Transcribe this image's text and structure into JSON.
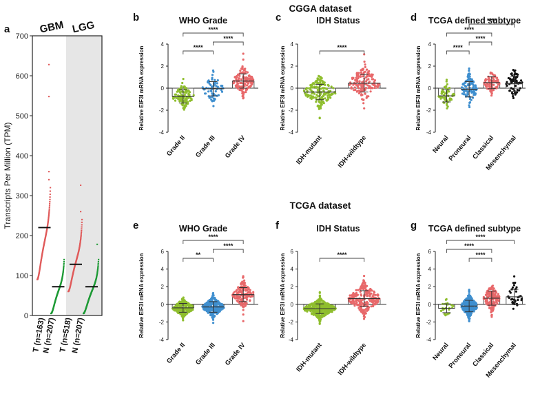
{
  "colors": {
    "green": "#8fbe2e",
    "blue": "#3f8fcf",
    "red": "#e8686a",
    "black": "#111111",
    "gtex_green": "#1d9a35",
    "tumor_red": "#e05a5a",
    "shade": "#e6e6e6"
  },
  "headers": {
    "cgga": "CGGA dataset",
    "tcga": "TCGA dataset"
  },
  "chart_data": [
    {
      "panel": "a",
      "type": "scatter",
      "ylabel": "Transcripts Per Million (TPM)",
      "ylim": [
        0,
        700
      ],
      "yticks": [
        "0",
        "100",
        "200",
        "300",
        "400",
        "500",
        "600",
        "700"
      ],
      "groups": [
        "GBM",
        "LGG"
      ],
      "categories": [
        "T (n=163)",
        "N (n=207)",
        "T (n=518)",
        "N (n=207)"
      ],
      "medians": [
        220,
        72,
        128,
        72
      ]
    },
    {
      "panel": "b",
      "type": "scatter",
      "dataset": "CGGA",
      "title": "WHO Grade",
      "ylabel": "Relative EIF3I mRNA expression",
      "ylim": [
        -4,
        4
      ],
      "yticks": [
        "-4",
        "-2",
        "0",
        "2",
        "4"
      ],
      "series": [
        {
          "name": "Grade II",
          "color": "green",
          "mean": -0.75,
          "sd": 0.6,
          "n": 110
        },
        {
          "name": "Grade III",
          "color": "blue",
          "mean": -0.05,
          "sd": 0.65,
          "n": 65
        },
        {
          "name": "Grade IV",
          "color": "red",
          "mean": 0.65,
          "sd": 0.65,
          "n": 140
        }
      ],
      "comparisons": [
        {
          "from": 0,
          "to": 1,
          "label": "****"
        },
        {
          "from": 1,
          "to": 2,
          "label": "****"
        },
        {
          "from": 0,
          "to": 2,
          "label": "****"
        }
      ]
    },
    {
      "panel": "c",
      "type": "scatter",
      "dataset": "CGGA",
      "title": "IDH Status",
      "ylabel": "Relative EIF3I mRNA expression",
      "ylim": [
        -4,
        4
      ],
      "yticks": [
        "-4",
        "-2",
        "0",
        "2",
        "4"
      ],
      "series": [
        {
          "name": "IDH-mutant",
          "color": "green",
          "mean": -0.35,
          "sd": 0.7,
          "n": 170
        },
        {
          "name": "IDH-wildtype",
          "color": "red",
          "mean": 0.45,
          "sd": 0.8,
          "n": 150
        }
      ],
      "comparisons": [
        {
          "from": 0,
          "to": 1,
          "label": "****"
        }
      ]
    },
    {
      "panel": "d",
      "type": "scatter",
      "dataset": "CGGA",
      "title": "TCGA defined subtype",
      "ylabel": "Relative EIF3I mRNA expression",
      "ylim": [
        -4,
        4
      ],
      "yticks": [
        "-4",
        "-2",
        "0",
        "2",
        "4"
      ],
      "series": [
        {
          "name": "Neural",
          "color": "green",
          "mean": -0.7,
          "sd": 0.55,
          "n": 60
        },
        {
          "name": "Proneural",
          "color": "blue",
          "mean": -0.1,
          "sd": 0.7,
          "n": 100
        },
        {
          "name": "Classical",
          "color": "red",
          "mean": 0.5,
          "sd": 0.55,
          "n": 75
        },
        {
          "name": "Mesenchymal",
          "color": "black",
          "mean": 0.4,
          "sd": 0.7,
          "n": 60
        }
      ],
      "comparisons": [
        {
          "from": 0,
          "to": 1,
          "label": "****"
        },
        {
          "from": 0,
          "to": 2,
          "label": "****"
        },
        {
          "from": 1,
          "to": 2,
          "label": "****"
        },
        {
          "from": 1,
          "to": 3,
          "label": "****"
        }
      ]
    },
    {
      "panel": "e",
      "type": "scatter",
      "dataset": "TCGA",
      "title": "WHO Grade",
      "ylabel": "Relative EIF3I mRNA expression",
      "ylim": [
        -4,
        6
      ],
      "yticks": [
        "-4",
        "-2",
        "0",
        "2",
        "4",
        "6"
      ],
      "series": [
        {
          "name": "Grade II",
          "color": "green",
          "mean": -0.4,
          "sd": 0.5,
          "n": 230
        },
        {
          "name": "Grade III",
          "color": "blue",
          "mean": -0.3,
          "sd": 0.6,
          "n": 240
        },
        {
          "name": "Grade IV",
          "color": "red",
          "mean": 1.1,
          "sd": 0.8,
          "n": 150
        }
      ],
      "comparisons": [
        {
          "from": 0,
          "to": 1,
          "label": "**"
        },
        {
          "from": 1,
          "to": 2,
          "label": "****"
        },
        {
          "from": 0,
          "to": 2,
          "label": "****"
        }
      ]
    },
    {
      "panel": "f",
      "type": "scatter",
      "dataset": "TCGA",
      "title": "IDH Status",
      "ylabel": "Relative EIF3I mRNA expression",
      "ylim": [
        -4,
        6
      ],
      "yticks": [
        "-4",
        "-2",
        "0",
        "2",
        "4",
        "6"
      ],
      "series": [
        {
          "name": "IDH-mutant",
          "color": "green",
          "mean": -0.5,
          "sd": 0.55,
          "n": 400
        },
        {
          "name": "IDH-wildtype",
          "color": "red",
          "mean": 0.65,
          "sd": 0.9,
          "n": 230
        }
      ],
      "comparisons": [
        {
          "from": 0,
          "to": 1,
          "label": "****"
        }
      ]
    },
    {
      "panel": "g",
      "type": "scatter",
      "dataset": "TCGA",
      "title": "TCGA defined subtype",
      "ylabel": "Relative EIF3I mRNA expression",
      "ylim": [
        -4,
        6
      ],
      "yticks": [
        "-4",
        "-2",
        "0",
        "2",
        "4",
        "6"
      ],
      "series": [
        {
          "name": "Neural",
          "color": "green",
          "mean": -0.45,
          "sd": 0.5,
          "n": 25
        },
        {
          "name": "Proneural",
          "color": "blue",
          "mean": -0.2,
          "sd": 0.65,
          "n": 330
        },
        {
          "name": "Classical",
          "color": "red",
          "mean": 0.7,
          "sd": 0.8,
          "n": 150
        },
        {
          "name": "Mesenchymal",
          "color": "black",
          "mean": 0.85,
          "sd": 0.85,
          "n": 35
        }
      ],
      "comparisons": [
        {
          "from": 1,
          "to": 2,
          "label": "****"
        },
        {
          "from": 0,
          "to": 2,
          "label": "****"
        },
        {
          "from": 0,
          "to": 3,
          "label": "****"
        }
      ]
    }
  ]
}
